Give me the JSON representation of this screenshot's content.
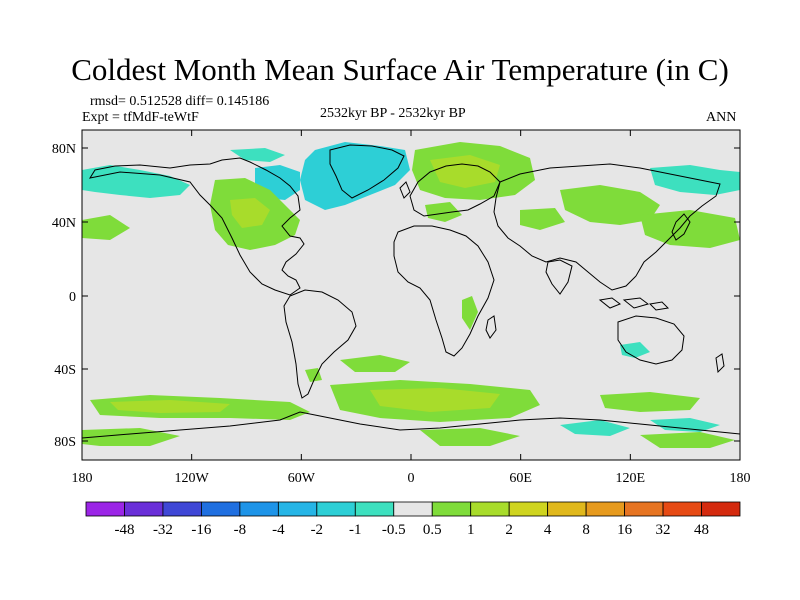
{
  "title": "Coldest Month Mean Surface Air Temperature (in C)",
  "stats": "rmsd= 0.512528 diff= 0.145186",
  "expt": "Expt = tfMdF-teWtF",
  "period": "2532kyr BP - 2532kyr BP",
  "season": "ANN",
  "axes": {
    "lat_labels": [
      "80N",
      "40N",
      "0",
      "40S",
      "80S"
    ],
    "lon_labels": [
      "180",
      "120W",
      "60W",
      "0",
      "60E",
      "120E",
      "180"
    ]
  },
  "colorbar": {
    "labels": [
      "-48",
      "-32",
      "-16",
      "-8",
      "-4",
      "-2",
      "-1",
      "-0.5",
      "0.5",
      "1",
      "2",
      "4",
      "8",
      "16",
      "32",
      "48"
    ],
    "colors": [
      "#9b25e6",
      "#6a2fd8",
      "#3f47d6",
      "#1f6fe0",
      "#1e94e8",
      "#26b5e6",
      "#2dcfd6",
      "#3de0bf",
      "#e6e6e6",
      "#7fdc3a",
      "#a8dc2b",
      "#cfd41f",
      "#e0b81c",
      "#e69a1e",
      "#e67422",
      "#e64a14",
      "#d42a0e"
    ]
  },
  "colors": {
    "ocean_land_bg": "#e6e6e6",
    "coast": "#000000",
    "pos_small": "#7fdc3a",
    "pos_medium": "#a8dc2b",
    "neg_small": "#3de0bf",
    "neg_medium": "#2dcfd6"
  }
}
